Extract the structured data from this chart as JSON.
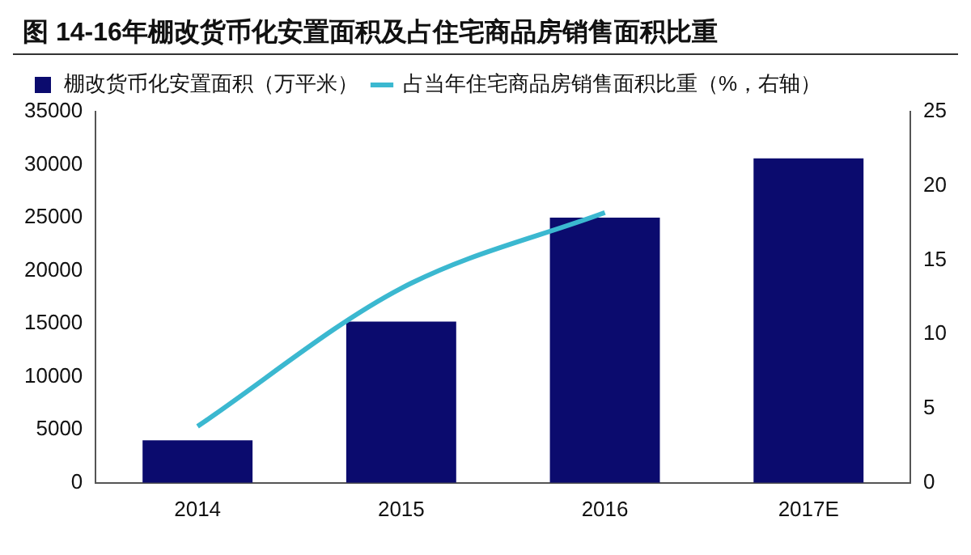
{
  "chart_data": {
    "type": "bar",
    "title": "图  14-16年棚改货币化安置面积及占住宅商品房销售面积比重",
    "categories": [
      "2014",
      "2015",
      "2016",
      "2017E"
    ],
    "series": [
      {
        "name": "棚改货币化安置面积（万平米）",
        "color": "#0b0b6e",
        "values": [
          4000,
          15200,
          25000,
          30600
        ]
      },
      {
        "name": "占当年住宅商品房销售面积比重（%，右轴）",
        "type": "line",
        "axis": "y2",
        "color": "#3bb8d0",
        "values": [
          3.8,
          13.1,
          18.2,
          null
        ]
      }
    ],
    "ylim": [
      0,
      35000
    ],
    "yticks": [
      0,
      5000,
      10000,
      15000,
      20000,
      25000,
      30000,
      35000
    ],
    "y2lim": [
      0,
      25
    ],
    "y2ticks": [
      0,
      5,
      10,
      15,
      20,
      25
    ],
    "grid": false,
    "legend": "top left",
    "marker": "none",
    "line_style": "solid"
  }
}
